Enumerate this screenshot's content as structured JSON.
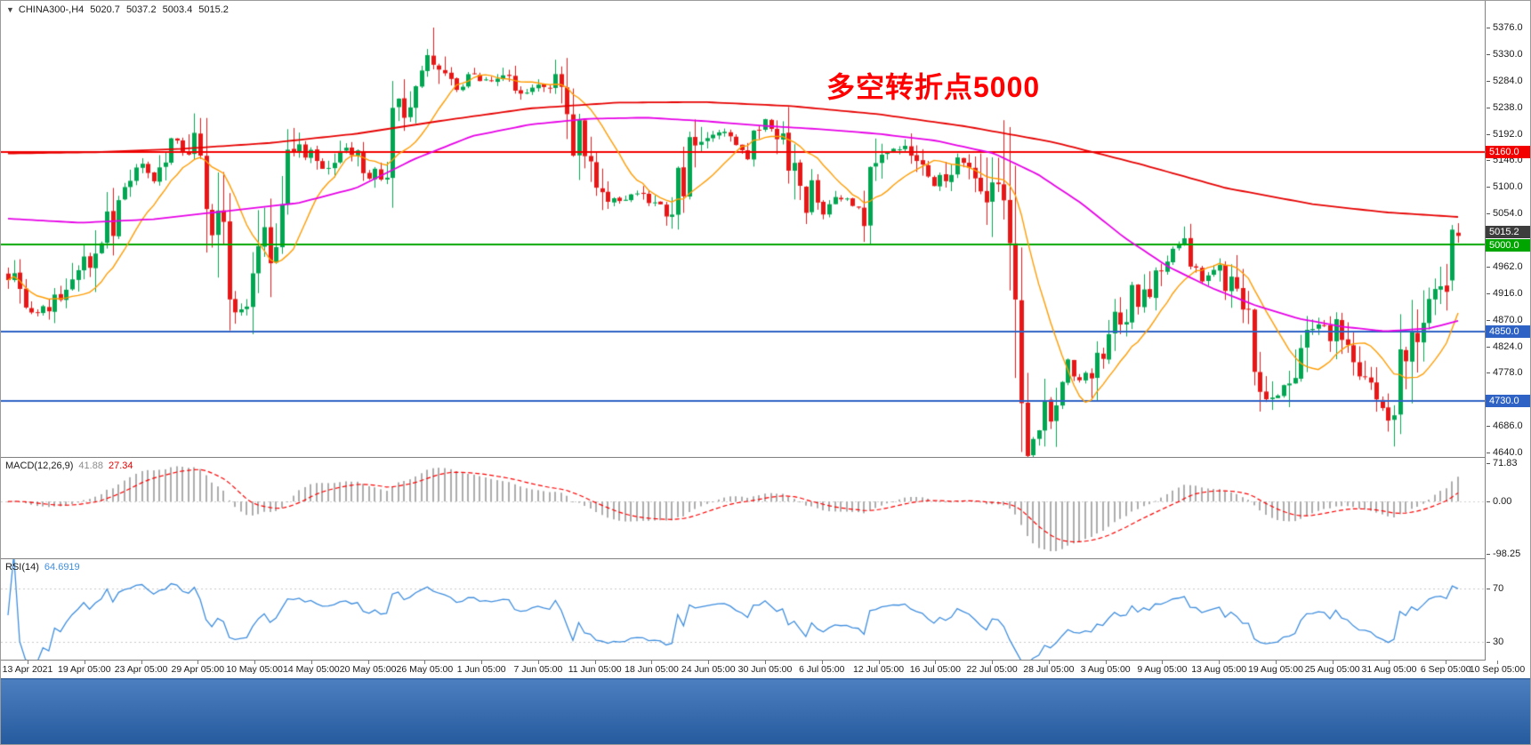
{
  "symbol_bar": {
    "icon_glyph": "▼",
    "symbol": "CHINA300-,H4",
    "open": "5020.7",
    "high": "5037.2",
    "low": "5003.4",
    "close": "5015.2"
  },
  "colors": {
    "background": "#ffffff",
    "candle_up": "#00a651",
    "candle_down": "#e81717",
    "ma_fast": "#ff9c00",
    "ma_medium": "#e600e6",
    "ma_slow": "#e60000",
    "current_badge": "#3d3d3d",
    "macd_histogram": "#adadad",
    "macd_signal": "#ff0000",
    "rsi_line": "#3f8ede",
    "level_line": "#c8c8c8",
    "separator": "#808080",
    "axis_text": "#1a1a1a",
    "taskbar_top": "#4c7fc0",
    "taskbar_bottom": "#255a9e"
  },
  "chart_data": {
    "type": "candlestick",
    "title": "CHINA300- H4 candlestick chart with MACD and RSI",
    "annotation": {
      "text": "多空转折点5000",
      "color": "#ff0000"
    },
    "current_price": 5015.2,
    "ohlc_current": {
      "open": 5020.7,
      "high": 5037.2,
      "low": 5003.4,
      "close": 5015.2
    },
    "y_axis": {
      "min": 4640,
      "max": 5376,
      "visible_ticks": [
        5376,
        5330,
        5284,
        5238,
        5192,
        5146,
        5100,
        5054,
        4962,
        4916,
        4870,
        4824,
        4778,
        4686,
        4640
      ]
    },
    "x_labels": [
      "13 Apr 2021",
      "19 Apr 05:00",
      "23 Apr 05:00",
      "29 Apr 05:00",
      "10 May 05:00",
      "14 May 05:00",
      "20 May 05:00",
      "26 May 05:00",
      "1 Jun 05:00",
      "7 Jun 05:00",
      "11 Jun 05:00",
      "18 Jun 05:00",
      "24 Jun 05:00",
      "30 Jun 05:00",
      "6 Jul 05:00",
      "12 Jul 05:00",
      "16 Jul 05:00",
      "22 Jul 05:00",
      "28 Jul 05:00",
      "3 Aug 05:00",
      "9 Aug 05:00",
      "13 Aug 05:00",
      "19 Aug 05:00",
      "25 Aug 05:00",
      "31 Aug 05:00",
      "6 Sep 05:00",
      "10 Sep 05:00"
    ],
    "horizontal_lines": [
      {
        "price": 5160.0,
        "color": "#f20000"
      },
      {
        "price": 5000.0,
        "color": "#00a500"
      },
      {
        "price": 4850.0,
        "color": "#2e62c4"
      },
      {
        "price": 4730.0,
        "color": "#2e62c4"
      }
    ],
    "candles": {
      "count": 250,
      "seed": 20210910,
      "trend_anchors": [
        [
          0,
          4950
        ],
        [
          0.02,
          4885
        ],
        [
          0.04,
          4925
        ],
        [
          0.06,
          4990
        ],
        [
          0.075,
          5075
        ],
        [
          0.09,
          5148
        ],
        [
          0.1,
          5118
        ],
        [
          0.115,
          5178
        ],
        [
          0.131,
          5150
        ],
        [
          0.145,
          5005
        ],
        [
          0.16,
          4892
        ],
        [
          0.17,
          4940
        ],
        [
          0.185,
          5065
        ],
        [
          0.2,
          5158
        ],
        [
          0.209,
          5148
        ],
        [
          0.22,
          5118
        ],
        [
          0.235,
          5178
        ],
        [
          0.248,
          5112
        ],
        [
          0.26,
          5158
        ],
        [
          0.275,
          5255
        ],
        [
          0.287,
          5325
        ],
        [
          0.295,
          5308
        ],
        [
          0.31,
          5268
        ],
        [
          0.32,
          5298
        ],
        [
          0.327,
          5278
        ],
        [
          0.34,
          5298
        ],
        [
          0.35,
          5252
        ],
        [
          0.366,
          5268
        ],
        [
          0.38,
          5278
        ],
        [
          0.39,
          5198
        ],
        [
          0.405,
          5118
        ],
        [
          0.415,
          5072
        ],
        [
          0.43,
          5092
        ],
        [
          0.444,
          5082
        ],
        [
          0.455,
          5052
        ],
        [
          0.47,
          5148
        ],
        [
          0.483,
          5198
        ],
        [
          0.495,
          5178
        ],
        [
          0.51,
          5162
        ],
        [
          0.522,
          5215
        ],
        [
          0.535,
          5188
        ],
        [
          0.55,
          5098
        ],
        [
          0.561,
          5052
        ],
        [
          0.575,
          5082
        ],
        [
          0.59,
          5062
        ],
        [
          0.601,
          5148
        ],
        [
          0.615,
          5168
        ],
        [
          0.63,
          5122
        ],
        [
          0.64,
          5098
        ],
        [
          0.655,
          5148
        ],
        [
          0.665,
          5138
        ],
        [
          0.679,
          5062
        ],
        [
          0.688,
          4982
        ],
        [
          0.695,
          4852
        ],
        [
          0.703,
          4702
        ],
        [
          0.712,
          4672
        ],
        [
          0.718,
          4742
        ],
        [
          0.73,
          4798
        ],
        [
          0.74,
          4762
        ],
        [
          0.75,
          4808
        ],
        [
          0.757,
          4848
        ],
        [
          0.77,
          4878
        ],
        [
          0.78,
          4918
        ],
        [
          0.796,
          4978
        ],
        [
          0.81,
          4995
        ],
        [
          0.82,
          4938
        ],
        [
          0.836,
          4948
        ],
        [
          0.845,
          4898
        ],
        [
          0.855,
          4848
        ],
        [
          0.865,
          4788
        ],
        [
          0.875,
          4732
        ],
        [
          0.885,
          4762
        ],
        [
          0.895,
          4838
        ],
        [
          0.905,
          4858
        ],
        [
          0.914,
          4848
        ],
        [
          0.925,
          4798
        ],
        [
          0.935,
          4758
        ],
        [
          0.945,
          4718
        ],
        [
          0.953,
          4698
        ],
        [
          0.962,
          4778
        ],
        [
          0.972,
          4868
        ],
        [
          0.982,
          4928
        ],
        [
          0.992,
          4958
        ],
        [
          1,
          5015
        ]
      ],
      "wick_extremes": [
        {
          "f": 0.293,
          "high": 5376.0
        },
        {
          "f": 0.706,
          "low": 4645.0
        },
        {
          "f": 0.712,
          "low": 4652.0
        },
        {
          "f": 0.955,
          "low": 4660.0
        },
        {
          "f": 0.81,
          "high": 5008.0
        }
      ],
      "prev_candle": {
        "open": 4938,
        "high": 5034,
        "low": 4920,
        "close": 5026
      },
      "last_candle": {
        "open": 5020.7,
        "high": 5037.2,
        "low": 5003.4,
        "close": 5015.2
      }
    },
    "moving_averages": {
      "fast": {
        "color": "#ff9c00",
        "period": 12
      },
      "medium": {
        "color": "#e600e6",
        "anchors": [
          [
            0,
            5045
          ],
          [
            0.05,
            5038
          ],
          [
            0.1,
            5044
          ],
          [
            0.15,
            5058
          ],
          [
            0.2,
            5072
          ],
          [
            0.24,
            5098
          ],
          [
            0.28,
            5148
          ],
          [
            0.32,
            5188
          ],
          [
            0.36,
            5208
          ],
          [
            0.4,
            5218
          ],
          [
            0.44,
            5220
          ],
          [
            0.48,
            5214
          ],
          [
            0.52,
            5206
          ],
          [
            0.56,
            5200
          ],
          [
            0.6,
            5192
          ],
          [
            0.64,
            5180
          ],
          [
            0.68,
            5158
          ],
          [
            0.71,
            5122
          ],
          [
            0.74,
            5072
          ],
          [
            0.77,
            5012
          ],
          [
            0.8,
            4962
          ],
          [
            0.83,
            4925
          ],
          [
            0.86,
            4895
          ],
          [
            0.89,
            4872
          ],
          [
            0.92,
            4858
          ],
          [
            0.95,
            4850
          ],
          [
            0.98,
            4855
          ],
          [
            1,
            4868
          ]
        ]
      },
      "slow": {
        "color": "#e60000",
        "anchors": [
          [
            0,
            5158
          ],
          [
            0.06,
            5160
          ],
          [
            0.12,
            5166
          ],
          [
            0.18,
            5176
          ],
          [
            0.24,
            5192
          ],
          [
            0.3,
            5215
          ],
          [
            0.36,
            5236
          ],
          [
            0.42,
            5246
          ],
          [
            0.48,
            5247
          ],
          [
            0.54,
            5240
          ],
          [
            0.6,
            5226
          ],
          [
            0.66,
            5205
          ],
          [
            0.72,
            5178
          ],
          [
            0.78,
            5140
          ],
          [
            0.84,
            5098
          ],
          [
            0.9,
            5070
          ],
          [
            0.95,
            5056
          ],
          [
            1,
            5048
          ]
        ]
      }
    },
    "indicators": {
      "macd": {
        "label": "MACD(12,26,9)",
        "value_main": "41.88",
        "value_signal": "27.34",
        "params": [
          12,
          26,
          9
        ],
        "axis": {
          "max": 71.83,
          "min": -98.25
        },
        "axis_labels": [
          {
            "text": "71.83",
            "value": 71.83
          },
          {
            "text": "0.00",
            "value": 0
          },
          {
            "text": "-98.25",
            "value": -98.25
          }
        ],
        "signal_color": "#ff0000"
      },
      "rsi": {
        "label": "RSI(14)",
        "value": "64.6919",
        "period": 14,
        "levels": [
          70,
          30
        ],
        "level_labels": [
          "70",
          "30"
        ],
        "color": "#3f8ede"
      }
    }
  }
}
